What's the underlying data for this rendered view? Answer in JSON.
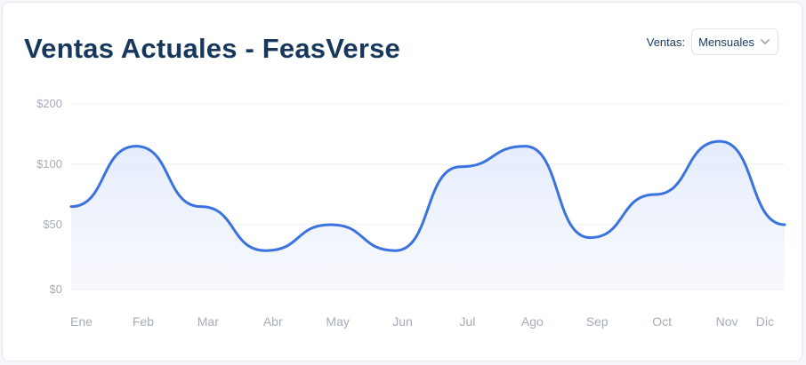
{
  "title": "Ventas Actuales - FeasVerse",
  "selector": {
    "label": "Ventas:",
    "value": "Mensuales"
  },
  "colors": {
    "line": "#3a72e0",
    "area_top": "#dfe8fb",
    "grid": "#e9ecf1",
    "title": "#17385c"
  },
  "chart_data": {
    "type": "area",
    "categories": [
      "Ene",
      "Feb",
      "Mar",
      "Abr",
      "May",
      "Jun",
      "Jul",
      "Ago",
      "Sep",
      "Oct",
      "Nov",
      "Dic"
    ],
    "series": [
      {
        "values": [
          65,
          130,
          65,
          30,
          50,
          30,
          98,
          130,
          40,
          75,
          138,
          50
        ]
      }
    ],
    "yticks": [
      "$0",
      "$50",
      "$100",
      "$200"
    ],
    "ytick_values": [
      0,
      50,
      100,
      200
    ],
    "ylim": [
      0,
      200
    ],
    "grid": true,
    "legend": "none",
    "curve": "smooth"
  }
}
